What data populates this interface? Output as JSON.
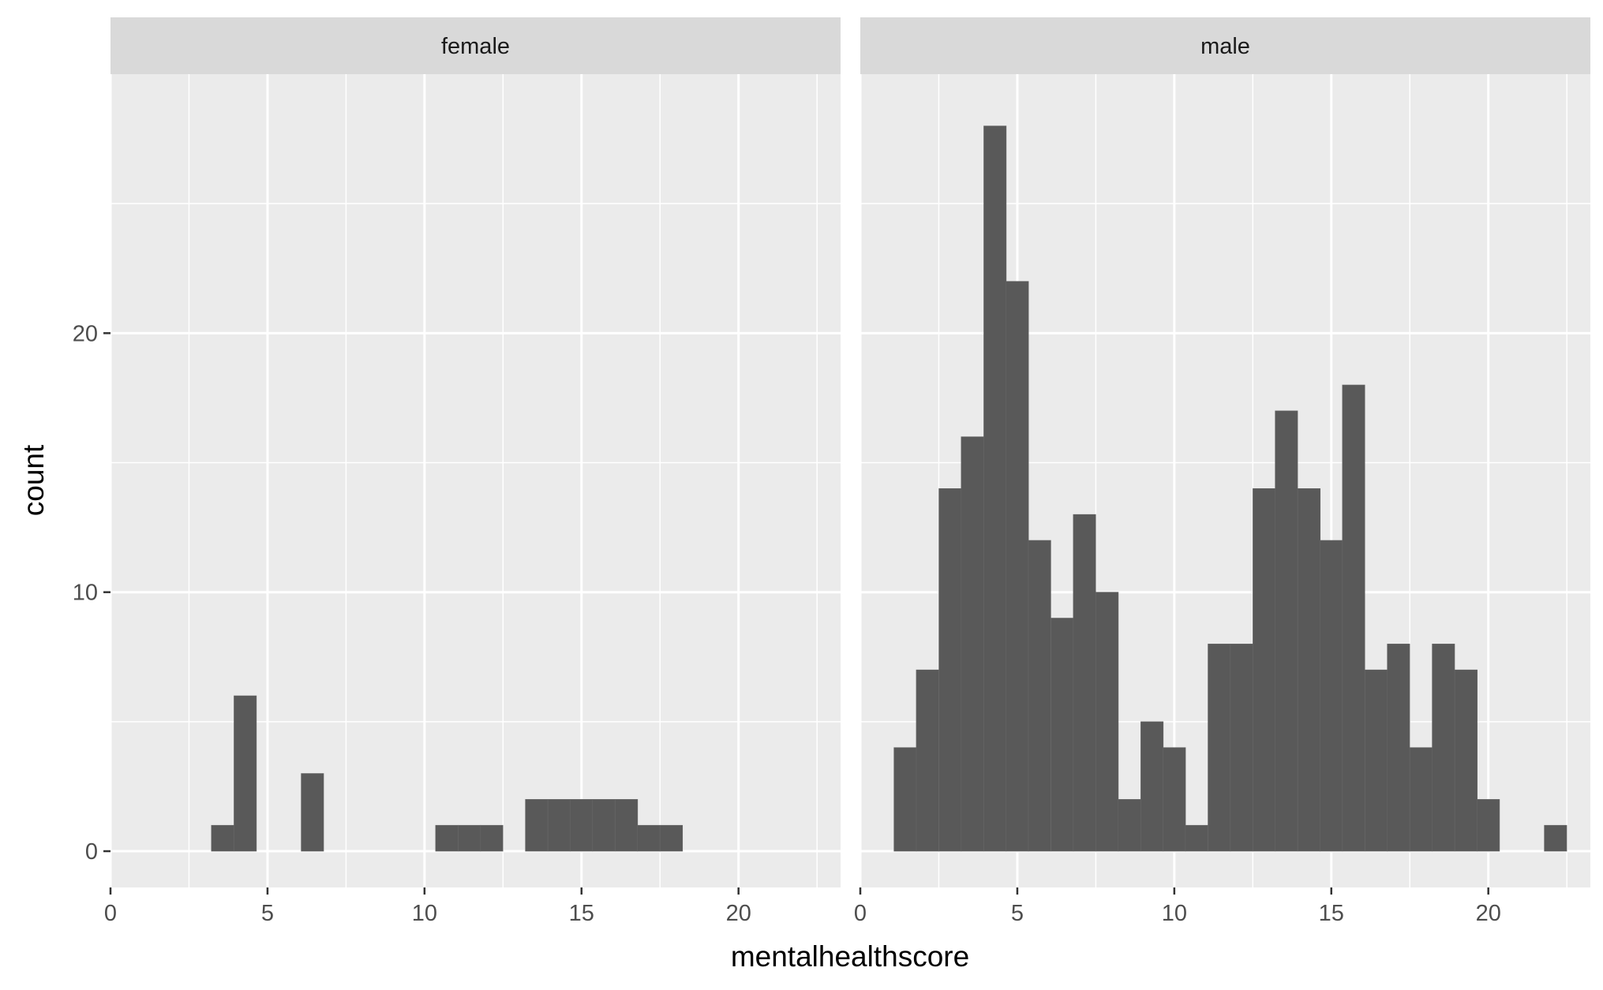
{
  "chart_data": {
    "type": "bar",
    "xlabel": "mentalhealthscore",
    "ylabel": "count",
    "bin_width": 0.7142857,
    "xlim": [
      0,
      23.25
    ],
    "ylim": [
      -1.4,
      30
    ],
    "x_ticks": [
      0,
      5,
      10,
      15,
      20
    ],
    "y_ticks": [
      0,
      10,
      20
    ],
    "grid": true,
    "facets": [
      {
        "name": "female",
        "bins": [
          {
            "x": 3.57,
            "count": 1
          },
          {
            "x": 4.29,
            "count": 6
          },
          {
            "x": 6.43,
            "count": 3
          },
          {
            "x": 10.71,
            "count": 1
          },
          {
            "x": 11.43,
            "count": 1
          },
          {
            "x": 12.14,
            "count": 1
          },
          {
            "x": 13.57,
            "count": 2
          },
          {
            "x": 14.29,
            "count": 2
          },
          {
            "x": 15.0,
            "count": 2
          },
          {
            "x": 15.71,
            "count": 2
          },
          {
            "x": 16.43,
            "count": 2
          },
          {
            "x": 17.14,
            "count": 1
          },
          {
            "x": 17.86,
            "count": 1
          }
        ]
      },
      {
        "name": "male",
        "bins": [
          {
            "x": 1.43,
            "count": 4
          },
          {
            "x": 2.14,
            "count": 7
          },
          {
            "x": 2.86,
            "count": 14
          },
          {
            "x": 3.57,
            "count": 16
          },
          {
            "x": 4.29,
            "count": 28
          },
          {
            "x": 5.0,
            "count": 22
          },
          {
            "x": 5.71,
            "count": 12
          },
          {
            "x": 6.43,
            "count": 9
          },
          {
            "x": 7.14,
            "count": 13
          },
          {
            "x": 7.86,
            "count": 10
          },
          {
            "x": 8.57,
            "count": 2
          },
          {
            "x": 9.29,
            "count": 5
          },
          {
            "x": 10.0,
            "count": 4
          },
          {
            "x": 10.71,
            "count": 1
          },
          {
            "x": 11.43,
            "count": 8
          },
          {
            "x": 12.14,
            "count": 8
          },
          {
            "x": 12.86,
            "count": 14
          },
          {
            "x": 13.57,
            "count": 17
          },
          {
            "x": 14.29,
            "count": 14
          },
          {
            "x": 15.0,
            "count": 12
          },
          {
            "x": 15.71,
            "count": 18
          },
          {
            "x": 16.43,
            "count": 7
          },
          {
            "x": 17.14,
            "count": 8
          },
          {
            "x": 17.86,
            "count": 4
          },
          {
            "x": 18.57,
            "count": 8
          },
          {
            "x": 19.29,
            "count": 7
          },
          {
            "x": 20.0,
            "count": 2
          },
          {
            "x": 22.14,
            "count": 1
          }
        ]
      }
    ]
  },
  "colors": {
    "panel_background": "#ebebeb",
    "strip_background": "#d9d9d9",
    "bar_fill": "#595959",
    "grid": "#ffffff"
  }
}
